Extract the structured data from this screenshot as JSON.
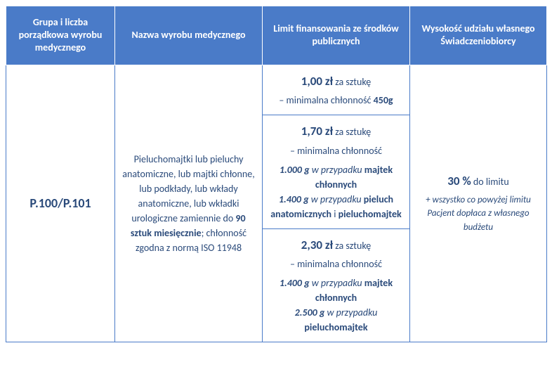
{
  "colors": {
    "header_bg": "#4a7bc8",
    "header_text": "#ffffff",
    "cell_border": "#4a7bc8",
    "cell_text": "#2a4a7a",
    "body_bg": "#ffffff"
  },
  "headers": {
    "c1": "Grupa i liczba porządkowa wyrobu medycznego",
    "c2": "Nazwa wyrobu medycznego",
    "c3": "Limit finansowania ze środków publicznych",
    "c4": "Wysokość udziału własnego Świadczeniobiorcy"
  },
  "code": "P.100/P.101",
  "product": {
    "line1": "Pieluchomajtki lub pieluchy anatomiczne, lub majtki chłonne, lub podkłady, lub wkłady anatomiczne, lub wkładki urologiczne zamiennie do ",
    "qty": "90 sztuk miesięcznie",
    "line2": "; chłonność zgodna z normą ISO 11948"
  },
  "limits": {
    "r1": {
      "price": "1,00 zł",
      "unit": " za sztukę",
      "sub": "– minimalna chłonność ",
      "weight": "450g"
    },
    "r2": {
      "price": "1,70 zł",
      "unit": " za sztukę",
      "sub": "– minimalna chłonność",
      "w1": "1.000 g",
      "d1": " w przypadku ",
      "p1": "majtek chłonnych",
      "w2": "1.400 g",
      "d2": " w przypadku ",
      "p2a": "pieluch anatomicznych",
      "and": " i ",
      "p2b": "pieluchomajtek"
    },
    "r3": {
      "price": "2,30 zł",
      "unit": " za sztukę",
      "sub": "– minimalna chłonność",
      "w1": "1.400 g",
      "d1": " w przypadku ",
      "p1": "majtek chłonnych",
      "w2": "2.500 g",
      "d2": " w przypadku ",
      "p2": "pieluchomajtek"
    }
  },
  "share": {
    "pct": "30 %",
    "pcttxt": " do limitu",
    "note": "+ wszystko co powyżej limitu Pacjent dopłaca z własnego budżetu"
  }
}
